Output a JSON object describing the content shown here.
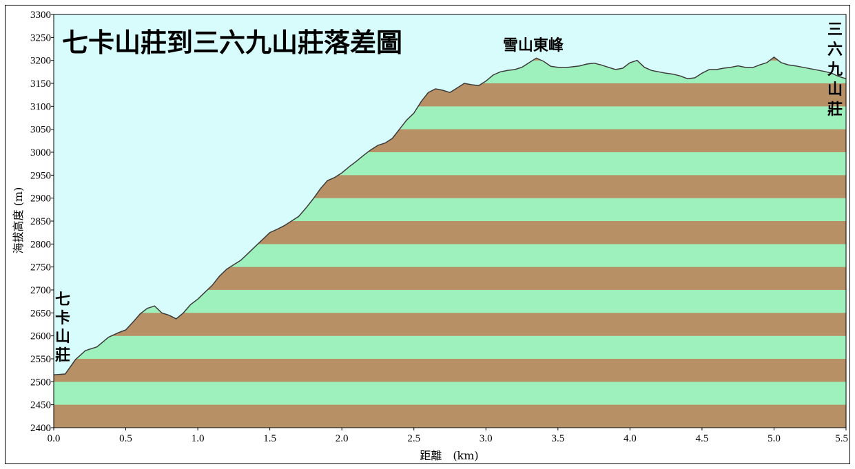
{
  "chart_data": {
    "type": "area",
    "title": "七卡山莊到三六九山莊落差圖",
    "xlabel": "距離　(km)",
    "ylabel": "海拔高度 (m)",
    "xlim": [
      0,
      5.5
    ],
    "ylim": [
      2400,
      3300
    ],
    "x_ticks": [
      "0.0",
      "0.5",
      "1.0",
      "1.5",
      "2.0",
      "2.5",
      "3.0",
      "3.5",
      "4.0",
      "4.5",
      "5.0",
      "5.5"
    ],
    "y_ticks": [
      "2400",
      "2450",
      "2500",
      "2550",
      "2600",
      "2650",
      "2700",
      "2750",
      "2800",
      "2850",
      "2900",
      "2950",
      "3000",
      "3050",
      "3100",
      "3150",
      "3200",
      "3250",
      "3300"
    ],
    "band_colors": [
      "#b89066",
      "#9ef0bc"
    ],
    "background_color": "#d8fcfc",
    "line_color": "#3a3a3a",
    "annotations": [
      {
        "text": "七卡山莊",
        "x": 0.0,
        "y": 2600
      },
      {
        "text": "雪山東峰",
        "x": 3.4,
        "y": 3230
      },
      {
        "text": "三六九山莊",
        "x": 5.5,
        "y": 3200
      }
    ],
    "series": [
      {
        "x": [
          0.0,
          0.08,
          0.15,
          0.22,
          0.3,
          0.38,
          0.45,
          0.5,
          0.55,
          0.6,
          0.65,
          0.7,
          0.75,
          0.8,
          0.85,
          0.9,
          0.95,
          1.0,
          1.05,
          1.1,
          1.15,
          1.2,
          1.25,
          1.3,
          1.35,
          1.4,
          1.45,
          1.5,
          1.55,
          1.6,
          1.65,
          1.7,
          1.75,
          1.8,
          1.85,
          1.9,
          1.95,
          2.0,
          2.05,
          2.1,
          2.15,
          2.2,
          2.25,
          2.3,
          2.35,
          2.4,
          2.45,
          2.5,
          2.55,
          2.6,
          2.65,
          2.7,
          2.75,
          2.8,
          2.85,
          2.9,
          2.95,
          3.0,
          3.05,
          3.1,
          3.15,
          3.2,
          3.25,
          3.3,
          3.35,
          3.4,
          3.45,
          3.5,
          3.55,
          3.6,
          3.65,
          3.7,
          3.75,
          3.8,
          3.85,
          3.9,
          3.95,
          4.0,
          4.05,
          4.1,
          4.15,
          4.2,
          4.25,
          4.3,
          4.35,
          4.4,
          4.45,
          4.5,
          4.55,
          4.6,
          4.65,
          4.7,
          4.75,
          4.8,
          4.85,
          4.9,
          4.95,
          5.0,
          5.05,
          5.1,
          5.15,
          5.2,
          5.25,
          5.3,
          5.35,
          5.4,
          5.45,
          5.5
        ],
        "values": [
          2515,
          2517,
          2548,
          2568,
          2576,
          2597,
          2607,
          2613,
          2630,
          2648,
          2660,
          2665,
          2650,
          2645,
          2637,
          2650,
          2668,
          2680,
          2695,
          2710,
          2730,
          2745,
          2755,
          2765,
          2780,
          2795,
          2810,
          2825,
          2832,
          2840,
          2850,
          2860,
          2878,
          2898,
          2920,
          2938,
          2945,
          2955,
          2968,
          2980,
          2993,
          3005,
          3015,
          3020,
          3030,
          3050,
          3070,
          3085,
          3110,
          3130,
          3138,
          3135,
          3130,
          3140,
          3150,
          3147,
          3145,
          3155,
          3168,
          3175,
          3178,
          3180,
          3185,
          3195,
          3205,
          3198,
          3187,
          3185,
          3184,
          3186,
          3188,
          3192,
          3194,
          3190,
          3185,
          3180,
          3183,
          3195,
          3200,
          3185,
          3178,
          3175,
          3172,
          3170,
          3166,
          3160,
          3162,
          3172,
          3180,
          3180,
          3183,
          3185,
          3188,
          3185,
          3184,
          3190,
          3195,
          3207,
          3195,
          3190,
          3188,
          3185,
          3182,
          3179,
          3176,
          3172,
          3165,
          3160
        ]
      }
    ]
  }
}
